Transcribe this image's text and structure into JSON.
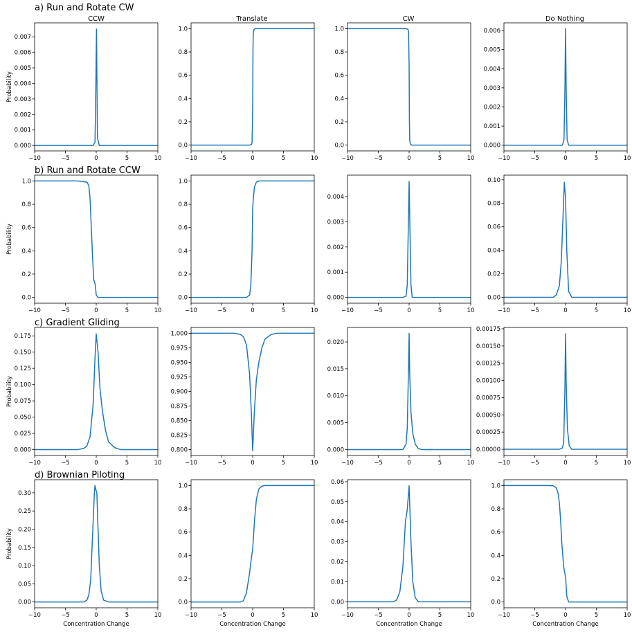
{
  "figure": {
    "line_color": "#1f77b4",
    "column_titles": [
      "CCW",
      "Translate",
      "CW",
      "Do Nothing"
    ],
    "row_titles": [
      "a) Run and Rotate CW",
      "b) Run and Rotate CCW",
      "c) Gradient Gliding",
      "d) Brownian Piloting"
    ],
    "ylabel": "Probability",
    "xlabel": "Concentration Change"
  },
  "chart_data": [
    {
      "row": 0,
      "col": 0,
      "type": "line",
      "title": "CCW",
      "ylabel": "Probability",
      "xlim": [
        -10,
        10
      ],
      "ylim": [
        -0.00035,
        0.0079
      ],
      "xticks": [
        -10,
        -5,
        0,
        5,
        10
      ],
      "xtick_labels": [
        "−10",
        "−5",
        "0",
        "5",
        "10"
      ],
      "yticks": [
        0,
        0.001,
        0.002,
        0.003,
        0.004,
        0.005,
        0.006,
        0.007
      ],
      "ytick_labels": [
        "0.000",
        "0.001",
        "0.002",
        "0.003",
        "0.004",
        "0.005",
        "0.006",
        "0.007"
      ],
      "series": [
        {
          "x": [
            -10,
            -1,
            -0.5,
            -0.2,
            -0.1,
            0,
            0.05,
            0.1,
            0.2,
            0.5,
            1,
            10
          ],
          "y": [
            0,
            0,
            0,
            0.0002,
            0.0025,
            0.006,
            0.0075,
            0.005,
            0.0005,
            0,
            0,
            0
          ]
        }
      ]
    },
    {
      "row": 0,
      "col": 1,
      "type": "line",
      "title": "Translate",
      "xlim": [
        -10,
        10
      ],
      "ylim": [
        -0.05,
        1.05
      ],
      "xticks": [
        -10,
        -5,
        0,
        5,
        10
      ],
      "xtick_labels": [
        "−10",
        "−5",
        "0",
        "5",
        "10"
      ],
      "yticks": [
        0,
        0.2,
        0.4,
        0.6,
        0.8,
        1.0
      ],
      "ytick_labels": [
        "0.0",
        "0.2",
        "0.4",
        "0.6",
        "0.8",
        "1.0"
      ],
      "series": [
        {
          "x": [
            -10,
            -0.5,
            -0.2,
            -0.1,
            0,
            0.05,
            0.1,
            0.2,
            0.4,
            1,
            10
          ],
          "y": [
            0,
            0,
            0.005,
            0.02,
            0.3,
            0.8,
            0.96,
            0.99,
            1,
            1,
            1
          ]
        }
      ]
    },
    {
      "row": 0,
      "col": 2,
      "type": "line",
      "title": "CW",
      "xlim": [
        -10,
        10
      ],
      "ylim": [
        -0.05,
        1.05
      ],
      "xticks": [
        -10,
        -5,
        0,
        5,
        10
      ],
      "xtick_labels": [
        "−10",
        "−5",
        "0",
        "5",
        "10"
      ],
      "yticks": [
        0,
        0.2,
        0.4,
        0.6,
        0.8,
        1.0
      ],
      "ytick_labels": [
        "0.0",
        "0.2",
        "0.4",
        "0.6",
        "0.8",
        "1.0"
      ],
      "series": [
        {
          "x": [
            -10,
            -0.5,
            -0.2,
            -0.1,
            0,
            0.05,
            0.1,
            0.2,
            0.4,
            1,
            10
          ],
          "y": [
            1,
            1,
            0.995,
            0.98,
            0.7,
            0.2,
            0.04,
            0.01,
            0,
            0,
            0
          ]
        }
      ]
    },
    {
      "row": 0,
      "col": 3,
      "type": "line",
      "title": "Do Nothing",
      "xlim": [
        -10,
        10
      ],
      "ylim": [
        -0.0003,
        0.0064
      ],
      "xticks": [
        -10,
        -5,
        0,
        5,
        10
      ],
      "xtick_labels": [
        "−10",
        "−5",
        "0",
        "5",
        "10"
      ],
      "yticks": [
        0,
        0.001,
        0.002,
        0.003,
        0.004,
        0.005,
        0.006
      ],
      "ytick_labels": [
        "0.000",
        "0.001",
        "0.002",
        "0.003",
        "0.004",
        "0.005",
        "0.006"
      ],
      "series": [
        {
          "x": [
            -10,
            -1,
            -0.5,
            -0.25,
            -0.1,
            0,
            0.1,
            0.25,
            0.5,
            1,
            10
          ],
          "y": [
            0,
            0,
            0,
            0.0003,
            0.003,
            0.0061,
            0.003,
            0.0003,
            0,
            0,
            0
          ]
        }
      ]
    },
    {
      "row": 1,
      "col": 0,
      "type": "line",
      "ylabel": "Probability",
      "xlim": [
        -10,
        10
      ],
      "ylim": [
        -0.05,
        1.05
      ],
      "xticks": [
        -10,
        -5,
        0,
        5,
        10
      ],
      "xtick_labels": [
        "−10",
        "−5",
        "0",
        "5",
        "10"
      ],
      "yticks": [
        0,
        0.2,
        0.4,
        0.6,
        0.8,
        1.0
      ],
      "ytick_labels": [
        "0.0",
        "0.2",
        "0.4",
        "0.6",
        "0.8",
        "1.0"
      ],
      "series": [
        {
          "x": [
            -10,
            -3,
            -1.5,
            -1.2,
            -1,
            -0.8,
            -0.6,
            -0.4,
            -0.2,
            -0.1,
            0,
            0.3,
            1,
            10
          ],
          "y": [
            1,
            1,
            0.99,
            0.96,
            0.85,
            0.6,
            0.35,
            0.15,
            0.12,
            0.08,
            0.02,
            0,
            0,
            0
          ]
        }
      ]
    },
    {
      "row": 1,
      "col": 1,
      "type": "line",
      "xlim": [
        -10,
        10
      ],
      "ylim": [
        -0.05,
        1.05
      ],
      "xticks": [
        -10,
        -5,
        0,
        5,
        10
      ],
      "xtick_labels": [
        "−10",
        "−5",
        "0",
        "5",
        "10"
      ],
      "yticks": [
        0,
        0.2,
        0.4,
        0.6,
        0.8,
        1.0
      ],
      "ytick_labels": [
        "0.0",
        "0.2",
        "0.4",
        "0.6",
        "0.8",
        "1.0"
      ],
      "series": [
        {
          "x": [
            -10,
            -1,
            -0.5,
            -0.3,
            -0.1,
            0,
            0.1,
            0.3,
            0.6,
            1,
            10
          ],
          "y": [
            0,
            0,
            0.02,
            0.1,
            0.4,
            0.75,
            0.85,
            0.95,
            0.99,
            1,
            1
          ]
        }
      ]
    },
    {
      "row": 1,
      "col": 2,
      "type": "line",
      "xlim": [
        -10,
        10
      ],
      "ylim": [
        -0.00023,
        0.00485
      ],
      "xticks": [
        -10,
        -5,
        0,
        5,
        10
      ],
      "xtick_labels": [
        "−10",
        "−5",
        "0",
        "5",
        "10"
      ],
      "yticks": [
        0,
        0.001,
        0.002,
        0.003,
        0.004
      ],
      "ytick_labels": [
        "0.000",
        "0.001",
        "0.002",
        "0.003",
        "0.004"
      ],
      "series": [
        {
          "x": [
            -10,
            -1,
            -0.5,
            -0.3,
            -0.15,
            0,
            0.15,
            0.3,
            0.5,
            1,
            10
          ],
          "y": [
            0,
            0,
            5e-05,
            0.0005,
            0.0025,
            0.0046,
            0.0025,
            0.0005,
            0,
            0,
            0
          ]
        }
      ]
    },
    {
      "row": 1,
      "col": 3,
      "type": "line",
      "xlim": [
        -10,
        10
      ],
      "ylim": [
        -0.005,
        0.104
      ],
      "xticks": [
        -10,
        -5,
        0,
        5,
        10
      ],
      "xtick_labels": [
        "−10",
        "−5",
        "0",
        "5",
        "10"
      ],
      "yticks": [
        0,
        0.02,
        0.04,
        0.06,
        0.08,
        0.1
      ],
      "ytick_labels": [
        "0.00",
        "0.02",
        "0.04",
        "0.06",
        "0.08",
        "0.10"
      ],
      "series": [
        {
          "x": [
            -10,
            -2,
            -1.5,
            -1,
            -0.7,
            -0.4,
            -0.2,
            0,
            0.2,
            0.5,
            1,
            10
          ],
          "y": [
            0,
            0,
            0.002,
            0.01,
            0.03,
            0.07,
            0.098,
            0.085,
            0.04,
            0.005,
            0,
            0
          ]
        }
      ]
    },
    {
      "row": 2,
      "col": 0,
      "type": "line",
      "ylabel": "Probability",
      "xlim": [
        -10,
        10
      ],
      "ylim": [
        -0.009,
        0.188
      ],
      "xticks": [
        -10,
        -5,
        0,
        5,
        10
      ],
      "xtick_labels": [
        "−10",
        "−5",
        "0",
        "5",
        "10"
      ],
      "yticks": [
        0,
        0.025,
        0.05,
        0.075,
        0.1,
        0.125,
        0.15,
        0.175
      ],
      "ytick_labels": [
        "0.000",
        "0.025",
        "0.050",
        "0.075",
        "0.100",
        "0.125",
        "0.150",
        "0.175"
      ],
      "series": [
        {
          "x": [
            -10,
            -3,
            -2,
            -1.5,
            -1,
            -0.5,
            -0.2,
            0,
            0.3,
            0.6,
            1,
            1.5,
            2,
            3,
            4,
            10
          ],
          "y": [
            0,
            0,
            0.002,
            0.006,
            0.02,
            0.07,
            0.14,
            0.178,
            0.15,
            0.095,
            0.06,
            0.03,
            0.012,
            0.003,
            0,
            0
          ]
        }
      ]
    },
    {
      "row": 2,
      "col": 1,
      "type": "line",
      "xlim": [
        -10,
        10
      ],
      "ylim": [
        0.79,
        1.01
      ],
      "xticks": [
        -10,
        -5,
        0,
        5,
        10
      ],
      "xtick_labels": [
        "−10",
        "−5",
        "0",
        "5",
        "10"
      ],
      "yticks": [
        0.8,
        0.825,
        0.85,
        0.875,
        0.9,
        0.925,
        0.95,
        0.975,
        1.0
      ],
      "ytick_labels": [
        "0.800",
        "0.825",
        "0.850",
        "0.875",
        "0.900",
        "0.925",
        "0.950",
        "0.975",
        "1.000"
      ],
      "series": [
        {
          "x": [
            -10,
            -3,
            -2,
            -1.5,
            -1,
            -0.5,
            -0.2,
            0,
            0.3,
            0.6,
            1,
            1.5,
            2,
            3,
            4,
            10
          ],
          "y": [
            1,
            1,
            0.998,
            0.994,
            0.98,
            0.93,
            0.86,
            0.798,
            0.87,
            0.92,
            0.95,
            0.975,
            0.99,
            0.998,
            1,
            1
          ]
        }
      ]
    },
    {
      "row": 2,
      "col": 2,
      "type": "line",
      "xlim": [
        -10,
        10
      ],
      "ylim": [
        -0.0011,
        0.0227
      ],
      "xticks": [
        -10,
        -5,
        0,
        5,
        10
      ],
      "xtick_labels": [
        "−10",
        "−5",
        "0",
        "5",
        "10"
      ],
      "yticks": [
        0,
        0.005,
        0.01,
        0.015,
        0.02
      ],
      "ytick_labels": [
        "0.000",
        "0.005",
        "0.010",
        "0.015",
        "0.020"
      ],
      "series": [
        {
          "x": [
            -10,
            -1,
            -0.5,
            -0.3,
            -0.1,
            0,
            0.1,
            0.3,
            0.6,
            1,
            1.5,
            2,
            10
          ],
          "y": [
            0,
            0,
            0.001,
            0.004,
            0.015,
            0.0216,
            0.014,
            0.007,
            0.003,
            0.001,
            0.0002,
            0,
            0
          ]
        }
      ]
    },
    {
      "row": 2,
      "col": 3,
      "type": "line",
      "xlim": [
        -10,
        10
      ],
      "ylim": [
        -9e-05,
        0.00177
      ],
      "xticks": [
        -10,
        -5,
        0,
        5,
        10
      ],
      "xtick_labels": [
        "−10",
        "−5",
        "0",
        "5",
        "10"
      ],
      "yticks": [
        0,
        0.00025,
        0.0005,
        0.00075,
        0.001,
        0.00125,
        0.0015,
        0.00175
      ],
      "ytick_labels": [
        "0.00000",
        "0.00025",
        "0.00050",
        "0.00075",
        "0.00100",
        "0.00125",
        "0.00150",
        "0.00175"
      ],
      "series": [
        {
          "x": [
            -10,
            -1,
            -0.5,
            -0.3,
            -0.1,
            0,
            0.1,
            0.3,
            0.6,
            1,
            10
          ],
          "y": [
            0,
            0,
            2e-05,
            0.0001,
            0.0009,
            0.00168,
            0.001,
            0.0003,
            5e-05,
            0,
            0
          ]
        }
      ]
    },
    {
      "row": 3,
      "col": 0,
      "type": "line",
      "ylabel": "Probability",
      "xlabel": "Concentration Change",
      "xlim": [
        -10,
        10
      ],
      "ylim": [
        -0.016,
        0.336
      ],
      "xticks": [
        -10,
        -5,
        0,
        5,
        10
      ],
      "xtick_labels": [
        "−10",
        "−5",
        "0",
        "5",
        "10"
      ],
      "yticks": [
        0,
        0.05,
        0.1,
        0.15,
        0.2,
        0.25,
        0.3
      ],
      "ytick_labels": [
        "0.00",
        "0.05",
        "0.10",
        "0.15",
        "0.20",
        "0.25",
        "0.30"
      ],
      "series": [
        {
          "x": [
            -10,
            -2,
            -1.5,
            -1.2,
            -0.9,
            -0.6,
            -0.3,
            -0.2,
            0,
            0.1,
            0.3,
            0.5,
            0.8,
            1.2,
            2,
            10
          ],
          "y": [
            0,
            0,
            0.005,
            0.02,
            0.06,
            0.18,
            0.3,
            0.32,
            0.305,
            0.3,
            0.2,
            0.1,
            0.03,
            0.005,
            0,
            0
          ]
        }
      ]
    },
    {
      "row": 3,
      "col": 1,
      "type": "line",
      "xlabel": "Concentration Change",
      "xlim": [
        -10,
        10
      ],
      "ylim": [
        -0.05,
        1.05
      ],
      "xticks": [
        -10,
        -5,
        0,
        5,
        10
      ],
      "xtick_labels": [
        "−10",
        "−5",
        "0",
        "5",
        "10"
      ],
      "yticks": [
        0,
        0.2,
        0.4,
        0.6,
        0.8,
        1.0
      ],
      "ytick_labels": [
        "0.0",
        "0.2",
        "0.4",
        "0.6",
        "0.8",
        "1.0"
      ],
      "series": [
        {
          "x": [
            -10,
            -2,
            -1.5,
            -1,
            -0.5,
            -0.2,
            0,
            0.3,
            0.6,
            1,
            1.5,
            2,
            10
          ],
          "y": [
            0,
            0,
            0.01,
            0.08,
            0.25,
            0.38,
            0.45,
            0.7,
            0.88,
            0.97,
            0.995,
            1,
            1
          ]
        }
      ]
    },
    {
      "row": 3,
      "col": 2,
      "type": "line",
      "xlabel": "Concentration Change",
      "xlim": [
        -10,
        10
      ],
      "ylim": [
        -0.003,
        0.061
      ],
      "xticks": [
        -10,
        -5,
        0,
        5,
        10
      ],
      "xtick_labels": [
        "−10",
        "−5",
        "0",
        "5",
        "10"
      ],
      "yticks": [
        0,
        0.01,
        0.02,
        0.03,
        0.04,
        0.05,
        0.06
      ],
      "ytick_labels": [
        "0.00",
        "0.01",
        "0.02",
        "0.03",
        "0.04",
        "0.05",
        "0.06"
      ],
      "series": [
        {
          "x": [
            -10,
            -2.5,
            -2,
            -1.5,
            -1,
            -0.6,
            -0.3,
            0,
            0.3,
            0.6,
            1,
            1.5,
            10
          ],
          "y": [
            0,
            0,
            0.001,
            0.005,
            0.018,
            0.04,
            0.046,
            0.058,
            0.03,
            0.01,
            0.002,
            0,
            0
          ]
        }
      ]
    },
    {
      "row": 3,
      "col": 3,
      "type": "line",
      "xlabel": "Concentration Change",
      "xlim": [
        -10,
        10
      ],
      "ylim": [
        -0.05,
        1.05
      ],
      "xticks": [
        -10,
        -5,
        0,
        5,
        10
      ],
      "xtick_labels": [
        "−10",
        "−5",
        "0",
        "5",
        "10"
      ],
      "yticks": [
        0,
        0.2,
        0.4,
        0.6,
        0.8,
        1.0
      ],
      "ytick_labels": [
        "0.0",
        "0.2",
        "0.4",
        "0.6",
        "0.8",
        "1.0"
      ],
      "series": [
        {
          "x": [
            -10,
            -3,
            -2,
            -1.5,
            -1.2,
            -1,
            -0.8,
            -0.6,
            -0.3,
            -0.1,
            0,
            0.2,
            0.5,
            1,
            10
          ],
          "y": [
            1,
            1,
            0.998,
            0.98,
            0.93,
            0.85,
            0.7,
            0.5,
            0.3,
            0.24,
            0.22,
            0.05,
            0,
            0,
            0
          ]
        }
      ]
    }
  ]
}
